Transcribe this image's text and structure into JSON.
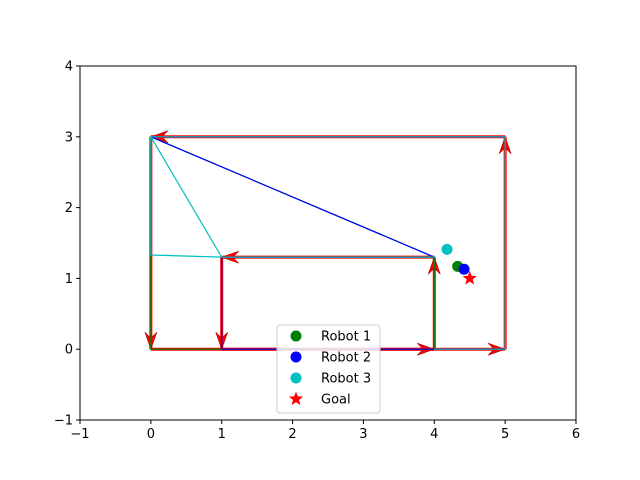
{
  "chart_data": {
    "type": "line",
    "title": "",
    "xlabel": "",
    "ylabel": "",
    "xlim": [
      -1,
      6
    ],
    "ylim": [
      -1,
      4
    ],
    "xticks": [
      "−1",
      "0",
      "1",
      "2",
      "3",
      "4",
      "5",
      "6"
    ],
    "yticks": [
      "−1",
      "0",
      "1",
      "2",
      "3",
      "4"
    ],
    "grid": false,
    "legend_position": "bottom-center",
    "path_arrows": {
      "color": "#ff0000",
      "segments": [
        {
          "from": [
            0,
            3
          ],
          "to": [
            0,
            0
          ]
        },
        {
          "from": [
            0,
            0
          ],
          "to": [
            4,
            0
          ]
        },
        {
          "from": [
            4,
            0
          ],
          "to": [
            4,
            1.3
          ]
        },
        {
          "from": [
            4,
            1.3
          ],
          "to": [
            1,
            1.3
          ]
        },
        {
          "from": [
            1,
            1.3
          ],
          "to": [
            1,
            0
          ]
        },
        {
          "from": [
            1,
            0
          ],
          "to": [
            5,
            0
          ]
        },
        {
          "from": [
            5,
            0
          ],
          "to": [
            5,
            3
          ]
        },
        {
          "from": [
            5,
            3
          ],
          "to": [
            0,
            3
          ]
        }
      ]
    },
    "series": [
      {
        "name": "Robot 1",
        "color": "#008000",
        "marker": "circle",
        "x": [
          4.33
        ],
        "y": [
          1.17
        ],
        "trail": [
          [
            0,
            3
          ],
          [
            0,
            0
          ],
          [
            4,
            0
          ],
          [
            4,
            1.3
          ],
          [
            0,
            3
          ]
        ]
      },
      {
        "name": "Robot 2",
        "color": "#0000ff",
        "marker": "circle",
        "x": [
          4.42
        ],
        "y": [
          1.13
        ],
        "trail": [
          [
            4,
            1.3
          ],
          [
            1,
            1.3
          ],
          [
            1,
            0
          ],
          [
            5,
            0
          ],
          [
            5,
            3
          ],
          [
            0,
            3
          ],
          [
            4,
            1.3
          ]
        ]
      },
      {
        "name": "Robot 3",
        "color": "#00bfbf",
        "marker": "circle",
        "x": [
          4.18
        ],
        "y": [
          1.41
        ],
        "trail": [
          [
            0,
            3
          ],
          [
            0,
            1.33
          ],
          [
            1,
            1.3
          ],
          [
            4,
            1.3
          ],
          [
            1,
            1.3
          ],
          [
            0,
            3
          ],
          [
            5,
            3
          ],
          [
            5,
            0
          ],
          [
            4,
            0
          ]
        ]
      },
      {
        "name": "Goal",
        "color": "#ff0000",
        "marker": "star",
        "x": [
          4.5
        ],
        "y": [
          1.0
        ]
      }
    ]
  }
}
